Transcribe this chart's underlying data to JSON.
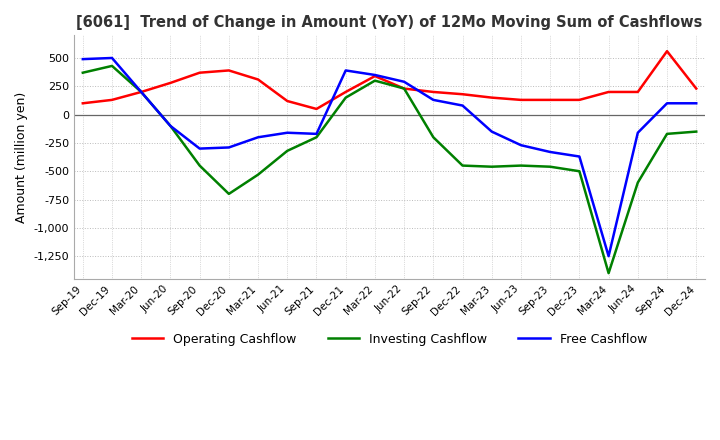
{
  "title": "[6061]  Trend of Change in Amount (YoY) of 12Mo Moving Sum of Cashflows",
  "ylabel": "Amount (million yen)",
  "x_labels": [
    "Sep-19",
    "Dec-19",
    "Mar-20",
    "Jun-20",
    "Sep-20",
    "Dec-20",
    "Mar-21",
    "Jun-21",
    "Sep-21",
    "Dec-21",
    "Mar-22",
    "Jun-22",
    "Sep-22",
    "Dec-22",
    "Mar-23",
    "Jun-23",
    "Sep-23",
    "Dec-23",
    "Mar-24",
    "Jun-24",
    "Sep-24",
    "Dec-24"
  ],
  "operating": [
    100,
    130,
    200,
    280,
    370,
    390,
    310,
    120,
    50,
    200,
    340,
    230,
    200,
    180,
    150,
    130,
    130,
    130,
    200,
    200,
    560,
    230
  ],
  "investing": [
    370,
    430,
    200,
    -100,
    -450,
    -700,
    -530,
    -320,
    -200,
    150,
    300,
    230,
    -200,
    -450,
    -460,
    -450,
    -460,
    -500,
    -1400,
    -600,
    -170,
    -150
  ],
  "free": [
    490,
    500,
    200,
    -100,
    -300,
    -290,
    -200,
    -160,
    -170,
    390,
    350,
    290,
    130,
    80,
    -150,
    -270,
    -330,
    -370,
    -1250,
    -160,
    100,
    100
  ],
  "ylim": [
    -1450,
    700
  ],
  "yticks": [
    500,
    250,
    0,
    -250,
    -500,
    -750,
    -1000,
    -1250
  ],
  "operating_color": "#ff0000",
  "investing_color": "#008000",
  "free_color": "#0000ff",
  "legend_labels": [
    "Operating Cashflow",
    "Investing Cashflow",
    "Free Cashflow"
  ],
  "background_color": "#ffffff",
  "grid_color": "#bbbbbb"
}
